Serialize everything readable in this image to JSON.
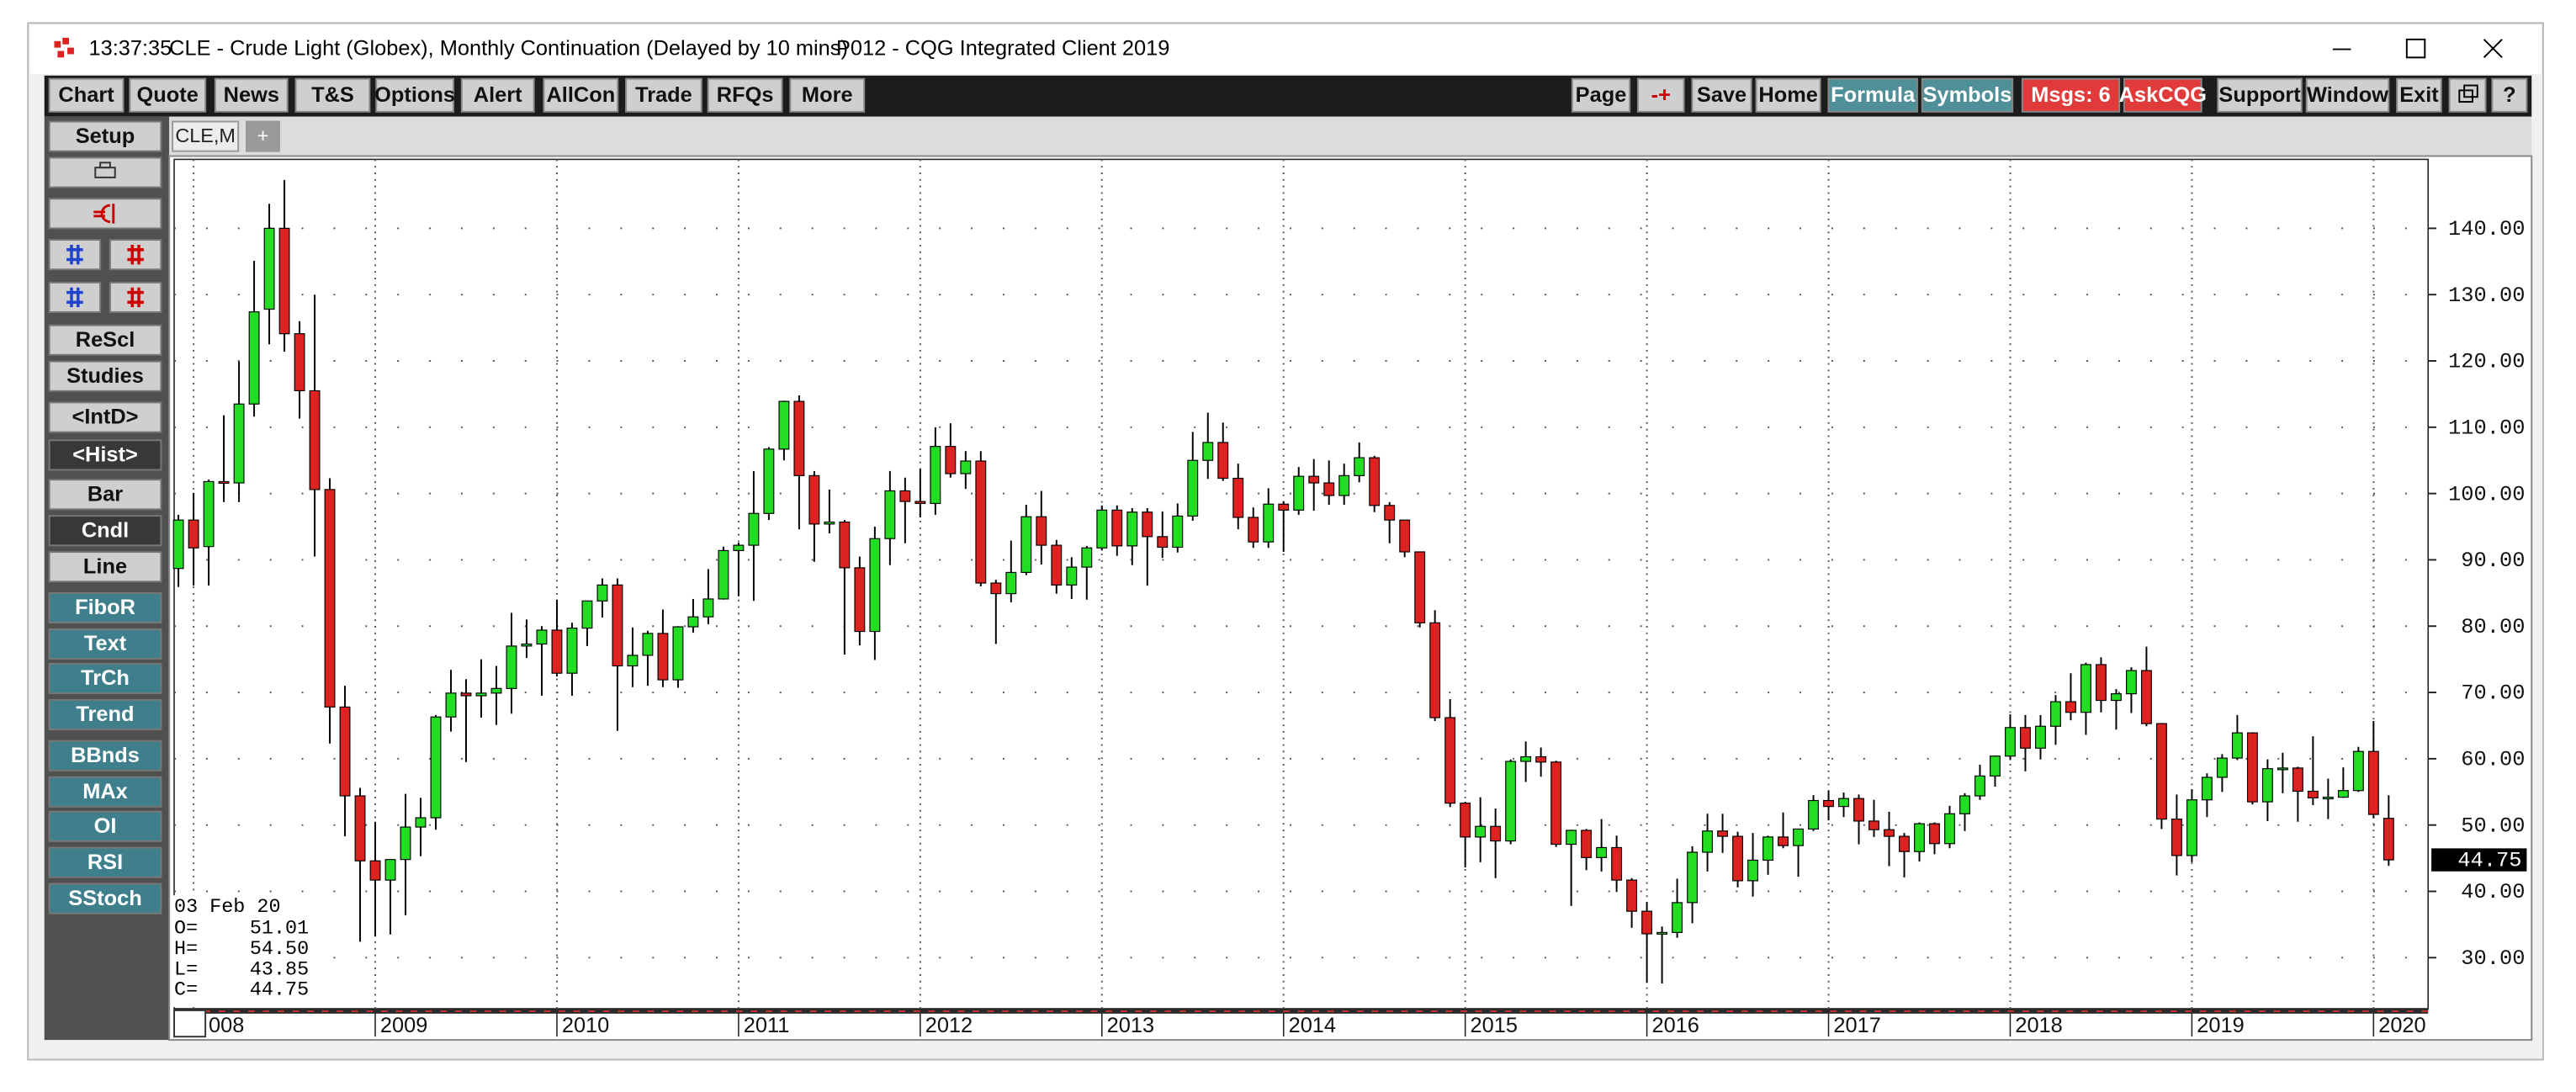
{
  "window": {
    "time": "13:37:35",
    "title": "CLE - Crude Light (Globex), Monthly Continuation (Delayed by 10 mins)",
    "client": "P012 - CQG Integrated Client 2019"
  },
  "toolbar": {
    "left": [
      "Chart",
      "Quote",
      "News",
      "T&S",
      "Options",
      "Alert",
      "AllCon",
      "Trade",
      "RFQs",
      "More"
    ],
    "right": [
      "Page",
      "-+",
      "Save",
      "Home",
      "Formula",
      "Symbols",
      "Msgs: 6",
      "AskCQG",
      "Support",
      "Window",
      "Exit",
      "?"
    ]
  },
  "sidebar": [
    "Setup",
    "ReScl",
    "Studies",
    "<IntD>",
    "<Hist>",
    "Bar",
    "Cndl",
    "Line",
    "FiboR",
    "Text",
    "TrCh",
    "Trend",
    "BBnds",
    "MAx",
    "OI",
    "RSI",
    "SStoch"
  ],
  "tabs": [
    "CLE,M",
    "+"
  ],
  "info_box": {
    "date": "03 Feb 20",
    "rows": [
      {
        "label": "O=",
        "value": "51.01"
      },
      {
        "label": "H=",
        "value": "54.50"
      },
      {
        "label": "L=",
        "value": "43.85"
      },
      {
        "label": "C=",
        "value": "44.75"
      }
    ]
  },
  "chart_data": {
    "type": "candlestick",
    "up_color": "#22dd22",
    "down_color": "#dd2222",
    "wick_color": "#000000",
    "grid": true,
    "ylim": [
      22.3,
      150.4
    ],
    "yticks": [
      {
        "value": 30,
        "label": "30.00"
      },
      {
        "value": 40,
        "label": "40.00"
      },
      {
        "value": 50,
        "label": "50.00"
      },
      {
        "value": 60,
        "label": "60.00"
      },
      {
        "value": 70,
        "label": "70.00"
      },
      {
        "value": 80,
        "label": "80.00"
      },
      {
        "value": 90,
        "label": "90.00"
      },
      {
        "value": 100,
        "label": "100.00"
      },
      {
        "value": 110,
        "label": "110.00"
      },
      {
        "value": 120,
        "label": "120.00"
      },
      {
        "value": 130,
        "label": "130.00"
      },
      {
        "value": 140,
        "label": "140.00"
      }
    ],
    "xticks": [
      {
        "value": 2008,
        "label": "008"
      },
      2009,
      2010,
      2011,
      2012,
      2013,
      2014,
      2015,
      2016,
      2017,
      2018,
      2019,
      2020
    ],
    "x": [
      "2007-12",
      "2008-01",
      "2008-02",
      "2008-03",
      "2008-04",
      "2008-05",
      "2008-06",
      "2008-07",
      "2008-08",
      "2008-09",
      "2008-10",
      "2008-11",
      "2008-12",
      "2009-01",
      "2009-02",
      "2009-03",
      "2009-04",
      "2009-05",
      "2009-06",
      "2009-07",
      "2009-08",
      "2009-09",
      "2009-10",
      "2009-11",
      "2009-12",
      "2010-01",
      "2010-02",
      "2010-03",
      "2010-04",
      "2010-05",
      "2010-06",
      "2010-07",
      "2010-08",
      "2010-09",
      "2010-10",
      "2010-11",
      "2010-12",
      "2011-01",
      "2011-02",
      "2011-03",
      "2011-04",
      "2011-05",
      "2011-06",
      "2011-07",
      "2011-08",
      "2011-09",
      "2011-10",
      "2011-11",
      "2011-12",
      "2012-01",
      "2012-02",
      "2012-03",
      "2012-04",
      "2012-05",
      "2012-06",
      "2012-07",
      "2012-08",
      "2012-09",
      "2012-10",
      "2012-11",
      "2012-12",
      "2013-01",
      "2013-02",
      "2013-03",
      "2013-04",
      "2013-05",
      "2013-06",
      "2013-07",
      "2013-08",
      "2013-09",
      "2013-10",
      "2013-11",
      "2013-12",
      "2014-01",
      "2014-02",
      "2014-03",
      "2014-04",
      "2014-05",
      "2014-06",
      "2014-07",
      "2014-08",
      "2014-09",
      "2014-10",
      "2014-11",
      "2014-12",
      "2015-01",
      "2015-02",
      "2015-03",
      "2015-04",
      "2015-05",
      "2015-06",
      "2015-07",
      "2015-08",
      "2015-09",
      "2015-10",
      "2015-11",
      "2015-12",
      "2016-01",
      "2016-02",
      "2016-03",
      "2016-04",
      "2016-05",
      "2016-06",
      "2016-07",
      "2016-08",
      "2016-09",
      "2016-10",
      "2016-11",
      "2016-12",
      "2017-01",
      "2017-02",
      "2017-03",
      "2017-04",
      "2017-05",
      "2017-06",
      "2017-07",
      "2017-08",
      "2017-09",
      "2017-10",
      "2017-11",
      "2017-12",
      "2018-01",
      "2018-02",
      "2018-03",
      "2018-04",
      "2018-05",
      "2018-06",
      "2018-07",
      "2018-08",
      "2018-09",
      "2018-10",
      "2018-11",
      "2018-12",
      "2019-01",
      "2019-02",
      "2019-03",
      "2019-04",
      "2019-05",
      "2019-06",
      "2019-07",
      "2019-08",
      "2019-09",
      "2019-10",
      "2019-11",
      "2019-12",
      "2020-01",
      "2020-02"
    ],
    "open": [
      88.7,
      96.0,
      92.0,
      101.8,
      101.6,
      113.5,
      127.8,
      140.0,
      124.1,
      115.5,
      100.6,
      67.8,
      54.4,
      44.6,
      41.7,
      44.8,
      49.7,
      51.1,
      66.3,
      69.9,
      69.5,
      69.9,
      70.6,
      77.0,
      77.3,
      79.4,
      72.9,
      79.7,
      83.8,
      86.2,
      74.0,
      75.6,
      78.9,
      71.9,
      79.9,
      81.4,
      84.1,
      91.4,
      92.2,
      97.0,
      106.7,
      113.9,
      102.7,
      95.4,
      95.7,
      88.8,
      79.2,
      93.2,
      100.4,
      98.8,
      98.5,
      107.1,
      103.0,
      104.9,
      86.5,
      84.9,
      88.1,
      96.5,
      92.2,
      86.2,
      88.9,
      91.8,
      97.5,
      92.1,
      97.2,
      93.5,
      91.9,
      96.6,
      105.0,
      107.7,
      102.3,
      96.4,
      92.7,
      98.4,
      97.5,
      102.6,
      101.6,
      99.7,
      102.7,
      105.4,
      98.2,
      96.0,
      91.2,
      80.5,
      66.2,
      53.3,
      48.2,
      49.8,
      47.6,
      59.6,
      60.3,
      59.5,
      47.1,
      49.2,
      45.1,
      46.6,
      41.7,
      37.0,
      33.6,
      33.8,
      38.3,
      45.9,
      49.1,
      48.3,
      41.6,
      44.7,
      48.2,
      46.9,
      49.4,
      53.7,
      52.8,
      54.0,
      50.6,
      49.3,
      48.3,
      46.0,
      50.2,
      47.2,
      51.7,
      54.4,
      57.4,
      60.4,
      64.7,
      61.6,
      64.9,
      68.6,
      67.0,
      74.2,
      68.8,
      69.8,
      73.3,
      65.3,
      50.9,
      45.4,
      53.8,
      57.2,
      60.1,
      63.9,
      53.5,
      58.5,
      58.6,
      55.1,
      54.1,
      54.2,
      55.2,
      61.1,
      51.01
    ],
    "high": [
      96.8,
      100.1,
      102.1,
      111.8,
      119.9,
      135.1,
      143.7,
      147.3,
      126.0,
      130.0,
      102.3,
      71.0,
      55.6,
      50.5,
      44.0,
      54.7,
      54.1,
      66.6,
      73.4,
      72.0,
      75.0,
      74.0,
      82.0,
      81.0,
      80.0,
      84.0,
      80.5,
      83.2,
      87.2,
      87.2,
      79.8,
      79.3,
      82.5,
      80.0,
      84.1,
      88.6,
      92.0,
      92.6,
      103.4,
      107.0,
      114.0,
      114.8,
      103.4,
      100.6,
      96.0,
      90.5,
      95.0,
      103.4,
      102.4,
      103.7,
      110.0,
      110.6,
      106.4,
      106.4,
      87.0,
      92.9,
      98.3,
      100.4,
      93.0,
      90.4,
      92.1,
      98.2,
      98.2,
      97.8,
      97.8,
      97.3,
      98.5,
      109.3,
      112.2,
      110.7,
      104.5,
      97.9,
      100.8,
      98.8,
      104.0,
      105.2,
      104.99,
      104.5,
      107.7,
      105.7,
      98.7,
      96.0,
      91.2,
      82.4,
      69.0,
      53.5,
      54.2,
      52.5,
      59.9,
      62.6,
      61.7,
      59.7,
      49.3,
      49.4,
      50.9,
      48.4,
      42.0,
      38.4,
      34.7,
      41.9,
      46.8,
      51.7,
      51.7,
      49.0,
      48.8,
      48.4,
      51.9,
      49.2,
      54.5,
      55.2,
      54.9,
      54.6,
      53.8,
      52.0,
      48.8,
      50.4,
      50.4,
      52.9,
      54.8,
      59.1,
      60.5,
      66.7,
      66.6,
      66.6,
      69.6,
      72.9,
      74.5,
      75.3,
      70.5,
      73.8,
      76.9,
      65.4,
      54.6,
      55.4,
      57.8,
      60.7,
      66.6,
      64.0,
      59.9,
      60.9,
      58.8,
      63.4,
      57.0,
      58.7,
      61.8,
      65.7,
      54.5
    ],
    "low": [
      85.9,
      86.1,
      86.1,
      98.7,
      98.7,
      111.6,
      122.5,
      121.4,
      111.3,
      90.5,
      62.3,
      48.3,
      32.4,
      33.2,
      33.5,
      36.4,
      45.3,
      49.3,
      64.1,
      59.5,
      66.2,
      65.1,
      66.8,
      75.2,
      69.5,
      72.4,
      69.5,
      77.0,
      81.3,
      64.2,
      70.8,
      71.0,
      70.8,
      70.7,
      79.0,
      80.3,
      84.0,
      84.5,
      83.8,
      96.0,
      105.0,
      94.6,
      89.7,
      94.0,
      75.7,
      77.1,
      74.9,
      89.2,
      92.5,
      96.4,
      96.8,
      102.4,
      100.7,
      86.0,
      77.3,
      83.6,
      87.7,
      89.3,
      84.9,
      84.1,
      84.0,
      91.4,
      90.6,
      89.2,
      86.1,
      90.3,
      91.1,
      95.9,
      102.2,
      101.9,
      94.6,
      91.8,
      91.8,
      91.2,
      96.8,
      97.4,
      98.3,
      98.3,
      101.7,
      97.2,
      92.5,
      90.4,
      79.8,
      65.7,
      52.7,
      43.6,
      44.4,
      42.0,
      47.1,
      56.5,
      57.3,
      46.7,
      37.8,
      43.2,
      43.0,
      39.9,
      34.5,
      26.2,
      26.1,
      33.0,
      35.2,
      43.0,
      45.8,
      40.6,
      39.2,
      42.5,
      46.5,
      42.2,
      49.1,
      50.7,
      51.2,
      47.1,
      48.2,
      43.8,
      42.1,
      44.5,
      45.6,
      46.5,
      49.1,
      53.8,
      55.8,
      59.8,
      58.1,
      59.9,
      62.1,
      65.8,
      63.6,
      67.0,
      64.4,
      66.9,
      64.9,
      49.4,
      42.4,
      44.4,
      51.2,
      55.0,
      59.8,
      53.1,
      50.6,
      54.8,
      50.5,
      53.0,
      50.9,
      54.1,
      55.0,
      51.0,
      43.85
    ],
    "close": [
      96.0,
      91.8,
      101.8,
      101.6,
      113.5,
      127.4,
      140.0,
      124.1,
      115.5,
      100.6,
      67.8,
      54.4,
      44.6,
      41.7,
      44.8,
      49.7,
      51.1,
      66.3,
      69.9,
      69.5,
      69.9,
      70.6,
      77.0,
      77.3,
      79.4,
      72.9,
      79.7,
      83.8,
      86.2,
      74.0,
      75.6,
      78.9,
      71.9,
      79.9,
      81.4,
      84.1,
      91.4,
      92.2,
      97.0,
      106.7,
      113.9,
      102.7,
      95.4,
      95.7,
      88.8,
      79.2,
      93.2,
      100.4,
      98.8,
      98.5,
      107.1,
      103.0,
      104.9,
      86.5,
      84.9,
      88.1,
      96.5,
      92.2,
      86.2,
      88.9,
      91.8,
      97.5,
      92.1,
      97.2,
      93.5,
      91.9,
      96.6,
      105.0,
      107.7,
      102.3,
      96.4,
      92.7,
      98.4,
      97.5,
      102.6,
      101.6,
      99.7,
      102.7,
      105.4,
      98.2,
      96.0,
      91.2,
      80.5,
      66.2,
      53.3,
      48.2,
      49.8,
      47.6,
      59.6,
      60.3,
      59.5,
      47.1,
      49.2,
      45.1,
      46.6,
      41.7,
      37.0,
      33.6,
      33.8,
      38.3,
      45.9,
      49.1,
      48.3,
      41.6,
      44.7,
      48.2,
      46.9,
      49.4,
      53.7,
      52.8,
      54.0,
      50.6,
      49.3,
      48.3,
      46.0,
      50.2,
      47.2,
      51.7,
      54.4,
      57.4,
      60.4,
      64.7,
      61.6,
      64.9,
      68.6,
      67.0,
      74.2,
      68.8,
      69.8,
      73.3,
      65.3,
      50.9,
      45.4,
      53.8,
      57.2,
      60.1,
      63.9,
      53.5,
      58.5,
      58.6,
      55.1,
      54.1,
      54.2,
      55.2,
      61.1,
      51.6,
      44.75
    ]
  }
}
